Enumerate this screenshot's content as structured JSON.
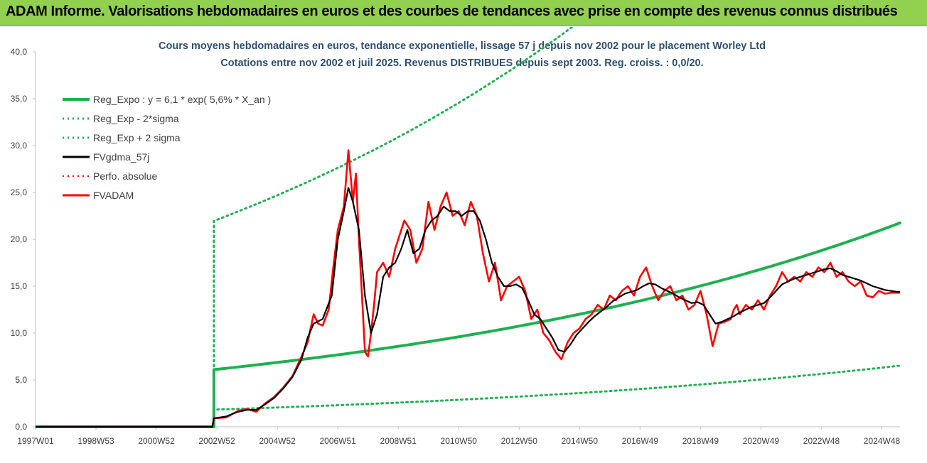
{
  "header": {
    "title": "ADAM Informe. Valorisations hebdomadaires en euros et des courbes de tendances avec prise en compte des revenus connus distribués"
  },
  "chart_data": {
    "type": "line",
    "subtitle_lines": [
      "Cours moyens hebdomadaires en euros, tendance exponentielle, lissage 57 j depuis nov 2002 pour le placement Worley Ltd",
      "Cotations entre nov 2002 et juil 2025. Revenus DISTRIBUES depuis sept 2003. Reg. croiss. : 0,0/20."
    ],
    "y_ticks": [
      "0,0",
      "5,0",
      "10,0",
      "15,0",
      "20,0",
      "25,0",
      "30,0",
      "35,0",
      "40,0"
    ],
    "ylim": [
      0,
      40
    ],
    "x_ticks": [
      {
        "label": "1997W01",
        "year": 1997.0
      },
      {
        "label": "1998W53",
        "year": 1999.0
      },
      {
        "label": "2000W52",
        "year": 2001.0
      },
      {
        "label": "2002W52",
        "year": 2003.0
      },
      {
        "label": "2004W52",
        "year": 2005.0
      },
      {
        "label": "2006W51",
        "year": 2007.0
      },
      {
        "label": "2008W51",
        "year": 2009.0
      },
      {
        "label": "2010W50",
        "year": 2011.0
      },
      {
        "label": "2012W50",
        "year": 2013.0
      },
      {
        "label": "2014W50",
        "year": 2015.0
      },
      {
        "label": "2016W49",
        "year": 2017.0
      },
      {
        "label": "2018W49",
        "year": 2019.0
      },
      {
        "label": "2020W49",
        "year": 2021.0
      },
      {
        "label": "2022W48",
        "year": 2023.0
      },
      {
        "label": "2024W48",
        "year": 2025.0
      }
    ],
    "xlim": [
      1997.0,
      2025.6
    ],
    "grid": false,
    "legend_position": "top-left",
    "legend": [
      {
        "label": "Reg_Expo : y = 6,1 * exp( 5,6% *  X_an )",
        "color": "#1fb050",
        "style": "solid",
        "width": 4
      },
      {
        "label": "Reg_Exp - 2*sigma",
        "color": "#1fb050",
        "style": "dotted",
        "width": 3
      },
      {
        "label": "Reg_Exp + 2 sigma",
        "color": "#1fb050",
        "style": "dotted",
        "width": 3
      },
      {
        "label": "FVgdma_57j",
        "color": "#000000",
        "style": "solid",
        "width": 3
      },
      {
        "label": "Perfo. absolue",
        "color": "#ff0000",
        "style": "dotted",
        "width": 2
      },
      {
        "label": "FVADAM",
        "color": "#ff0000",
        "style": "solid",
        "width": 3
      }
    ],
    "regression": {
      "a": 6.1,
      "rate": 0.056,
      "start_year": 2002.9,
      "end_year": 2025.6,
      "lower_factor": 0.3,
      "upper_factor": 3.6,
      "before_start_value": 0
    },
    "series": [
      {
        "name": "FVADAM",
        "color": "#ff0000",
        "x": [
          1997.0,
          2002.85,
          2002.9,
          2003.3,
          2003.7,
          2004.0,
          2004.3,
          2004.6,
          2004.9,
          2005.2,
          2005.5,
          2005.8,
          2006.0,
          2006.2,
          2006.35,
          2006.5,
          2006.7,
          2006.85,
          2007.0,
          2007.2,
          2007.35,
          2007.5,
          2007.6,
          2007.7,
          2007.8,
          2007.9,
          2008.0,
          2008.1,
          2008.2,
          2008.3,
          2008.5,
          2008.7,
          2008.9,
          2009.0,
          2009.2,
          2009.4,
          2009.6,
          2009.8,
          2010.0,
          2010.2,
          2010.4,
          2010.6,
          2010.8,
          2011.0,
          2011.2,
          2011.4,
          2011.6,
          2011.8,
          2012.0,
          2012.2,
          2012.4,
          2012.6,
          2012.8,
          2013.0,
          2013.2,
          2013.4,
          2013.6,
          2013.8,
          2014.0,
          2014.2,
          2014.4,
          2014.6,
          2014.8,
          2015.0,
          2015.2,
          2015.4,
          2015.6,
          2015.8,
          2016.0,
          2016.2,
          2016.4,
          2016.6,
          2016.8,
          2017.0,
          2017.2,
          2017.4,
          2017.6,
          2017.8,
          2018.0,
          2018.2,
          2018.4,
          2018.6,
          2018.8,
          2019.0,
          2019.2,
          2019.4,
          2019.6,
          2019.8,
          2020.0,
          2020.1,
          2020.2,
          2020.3,
          2020.5,
          2020.7,
          2020.9,
          2021.1,
          2021.3,
          2021.5,
          2021.7,
          2021.9,
          2022.1,
          2022.3,
          2022.5,
          2022.7,
          2022.9,
          2023.1,
          2023.3,
          2023.5,
          2023.7,
          2023.9,
          2024.1,
          2024.3,
          2024.5,
          2024.7,
          2024.9,
          2025.1,
          2025.3,
          2025.5,
          2025.6
        ],
        "y": [
          0,
          0,
          0.9,
          1.0,
          1.7,
          1.9,
          1.6,
          2.5,
          3.2,
          4.2,
          5.4,
          7.5,
          9.0,
          12.0,
          11.0,
          10.8,
          12.5,
          17.0,
          21.0,
          23.5,
          29.5,
          24.0,
          27.0,
          20.0,
          14.0,
          8.0,
          7.5,
          10.0,
          13.0,
          16.5,
          17.5,
          16.0,
          19.0,
          20.0,
          22.0,
          21.0,
          17.5,
          19.0,
          24.0,
          21.0,
          23.5,
          25.0,
          22.5,
          23.0,
          21.5,
          24.0,
          22.5,
          18.5,
          15.5,
          17.5,
          13.5,
          15.0,
          15.5,
          16.0,
          14.5,
          11.5,
          12.5,
          10.0,
          9.2,
          8.0,
          7.2,
          9.0,
          10.0,
          10.5,
          11.5,
          12.0,
          13.0,
          12.5,
          14.0,
          13.5,
          14.5,
          15.0,
          14.0,
          16.0,
          17.0,
          15.0,
          13.5,
          14.5,
          15.0,
          13.5,
          14.0,
          12.5,
          13.0,
          14.5,
          12.0,
          8.6,
          11.0,
          11.2,
          11.5,
          12.5,
          13.0,
          12.0,
          13.0,
          12.5,
          13.5,
          12.5,
          14.0,
          15.0,
          16.5,
          15.5,
          16.0,
          15.5,
          16.5,
          16.0,
          17.0,
          16.5,
          17.5,
          16.0,
          16.5,
          15.5,
          15.0,
          15.5,
          14.0,
          13.8,
          14.5,
          14.2,
          14.3,
          14.3,
          14.3
        ]
      },
      {
        "name": "FVgdma_57j",
        "color": "#000000",
        "x": [
          1997.0,
          2002.85,
          2002.9,
          2003.3,
          2003.7,
          2004.0,
          2004.3,
          2004.6,
          2004.9,
          2005.2,
          2005.5,
          2005.8,
          2006.0,
          2006.2,
          2006.5,
          2006.8,
          2007.0,
          2007.2,
          2007.35,
          2007.5,
          2007.7,
          2007.9,
          2008.1,
          2008.3,
          2008.5,
          2008.7,
          2008.9,
          2009.1,
          2009.3,
          2009.5,
          2009.7,
          2009.9,
          2010.1,
          2010.3,
          2010.5,
          2010.7,
          2010.9,
          2011.1,
          2011.3,
          2011.5,
          2011.7,
          2011.9,
          2012.1,
          2012.3,
          2012.5,
          2012.7,
          2012.9,
          2013.1,
          2013.3,
          2013.5,
          2013.7,
          2013.9,
          2014.1,
          2014.3,
          2014.5,
          2014.7,
          2014.9,
          2015.1,
          2015.3,
          2015.5,
          2015.7,
          2015.9,
          2016.1,
          2016.3,
          2016.5,
          2016.7,
          2016.9,
          2017.1,
          2017.3,
          2017.5,
          2017.7,
          2017.9,
          2018.1,
          2018.3,
          2018.5,
          2018.7,
          2018.9,
          2019.1,
          2019.3,
          2019.5,
          2019.7,
          2019.9,
          2020.1,
          2020.3,
          2020.5,
          2020.7,
          2020.9,
          2021.1,
          2021.3,
          2021.5,
          2021.7,
          2021.9,
          2022.1,
          2022.3,
          2022.5,
          2022.7,
          2022.9,
          2023.1,
          2023.3,
          2023.5,
          2023.7,
          2023.9,
          2024.1,
          2024.3,
          2024.5,
          2024.7,
          2024.9,
          2025.1,
          2025.3,
          2025.5,
          2025.6
        ],
        "y": [
          0,
          0,
          0.9,
          1.1,
          1.6,
          1.8,
          1.8,
          2.4,
          3.1,
          4.1,
          5.3,
          7.2,
          9.5,
          11.0,
          11.5,
          14.0,
          20.0,
          23.0,
          25.5,
          24.0,
          21.0,
          14.0,
          10.0,
          12.0,
          16.0,
          17.0,
          17.5,
          19.0,
          21.0,
          18.5,
          19.0,
          21.0,
          22.0,
          22.5,
          23.5,
          23.0,
          23.0,
          22.5,
          23.0,
          23.0,
          22.0,
          20.0,
          17.5,
          16.0,
          15.0,
          15.0,
          15.2,
          14.8,
          13.5,
          12.0,
          11.5,
          10.5,
          9.5,
          8.2,
          8.0,
          8.8,
          9.8,
          10.5,
          11.2,
          11.8,
          12.3,
          12.8,
          13.4,
          13.8,
          14.2,
          14.4,
          14.6,
          15.0,
          15.3,
          15.2,
          14.8,
          14.5,
          14.2,
          13.8,
          13.5,
          13.2,
          13.3,
          13.0,
          12.0,
          11.0,
          11.2,
          11.5,
          11.8,
          12.2,
          12.5,
          12.8,
          13.0,
          13.2,
          13.8,
          14.5,
          15.2,
          15.5,
          15.8,
          16.0,
          16.2,
          16.4,
          16.6,
          16.8,
          16.9,
          16.6,
          16.2,
          16.0,
          15.8,
          15.6,
          15.3,
          15.0,
          14.8,
          14.6,
          14.5,
          14.4,
          14.4
        ]
      }
    ]
  }
}
